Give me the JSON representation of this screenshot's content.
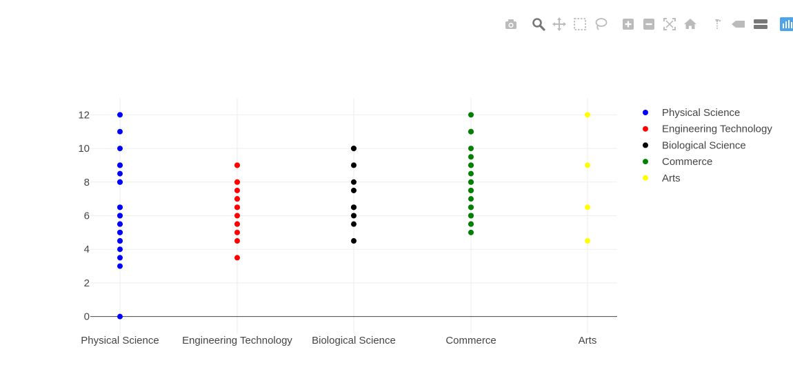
{
  "modebar": {
    "buttons": [
      {
        "name": "camera-icon",
        "title": "Download plot as a png"
      },
      {
        "name": "zoom-icon",
        "title": "Zoom"
      },
      {
        "name": "pan-icon",
        "title": "Pan"
      },
      {
        "name": "box-select-icon",
        "title": "Box Select"
      },
      {
        "name": "lasso-select-icon",
        "title": "Lasso Select"
      },
      {
        "name": "zoom-in-icon",
        "title": "Zoom in"
      },
      {
        "name": "zoom-out-icon",
        "title": "Zoom out"
      },
      {
        "name": "autoscale-icon",
        "title": "Autoscale"
      },
      {
        "name": "home-icon",
        "title": "Reset axes"
      },
      {
        "name": "spike-lines-icon",
        "title": "Toggle Spike Lines"
      },
      {
        "name": "hover-closest-icon",
        "title": "Show closest data on hover"
      },
      {
        "name": "hover-compare-icon",
        "title": "Compare data on hover"
      },
      {
        "name": "plotly-logo-icon",
        "title": "Produced with Plotly"
      }
    ]
  },
  "chart_data": {
    "type": "scatter",
    "title": "",
    "xlabel": "",
    "ylabel": "",
    "categories": [
      "Physical Science",
      "Engineering Technology",
      "Biological Science",
      "Commerce",
      "Arts"
    ],
    "ylim": [
      -1,
      13
    ],
    "yticks": [
      0,
      2,
      4,
      6,
      8,
      10,
      12
    ],
    "grid": true,
    "legend_position": "right",
    "series": [
      {
        "name": "Physical Science",
        "color": "#0000ff",
        "x": "Physical Science",
        "values": [
          12,
          11,
          10,
          9,
          9,
          8.5,
          8,
          8,
          6.5,
          6.5,
          6,
          6,
          5.5,
          5.5,
          5,
          5,
          4.5,
          4.5,
          4,
          3.5,
          3,
          0
        ]
      },
      {
        "name": "Engineering Technology",
        "color": "#ff0000",
        "x": "Engineering Technology",
        "values": [
          9,
          9,
          8,
          8,
          7.5,
          7,
          7,
          6.5,
          6.5,
          6,
          5.5,
          5.5,
          5,
          4.5,
          3.5
        ]
      },
      {
        "name": "Biological Science",
        "color": "#000000",
        "x": "Biological Science",
        "values": [
          10,
          10,
          9,
          8,
          7.5,
          6.5,
          6.5,
          6,
          5.5,
          4.5
        ]
      },
      {
        "name": "Commerce",
        "color": "#008000",
        "x": "Commerce",
        "values": [
          12,
          11,
          11,
          10,
          9.5,
          9,
          9,
          8.5,
          8,
          8,
          7.5,
          7.5,
          7,
          6.5,
          6.5,
          6,
          6,
          5.5,
          5.5,
          5
        ]
      },
      {
        "name": "Arts",
        "color": "#ffff00",
        "x": "Arts",
        "values": [
          12,
          9,
          6.5,
          4.5
        ]
      }
    ]
  }
}
